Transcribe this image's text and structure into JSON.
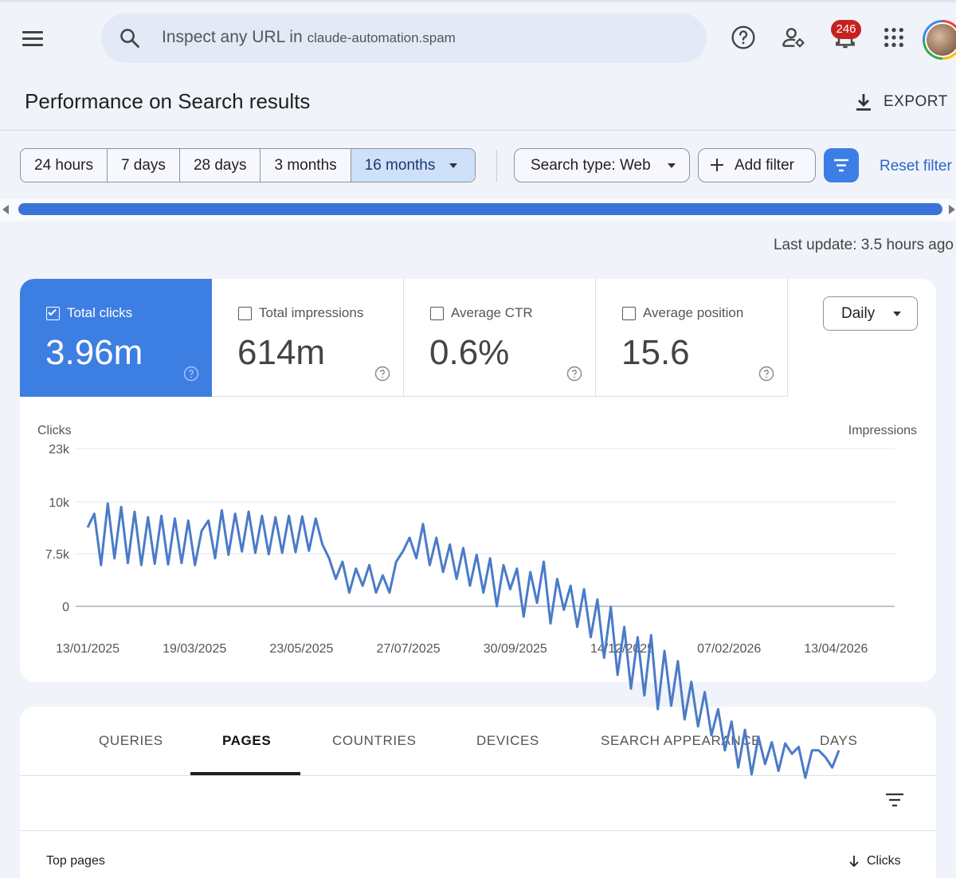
{
  "topbar": {
    "search_placeholder": "Inspect any URL in",
    "search_domain": "claude-automation.spam",
    "notification_count": "246",
    "icons": [
      "menu-icon",
      "search-icon",
      "help-icon",
      "people-settings-icon",
      "bell-icon",
      "apps-grid-icon",
      "avatar"
    ]
  },
  "header": {
    "title": "Performance on Search results",
    "export_label": "EXPORT"
  },
  "filters": {
    "ranges": [
      "24 hours",
      "7 days",
      "28 days",
      "3 months",
      "16 months"
    ],
    "active_range": "16 months",
    "search_type": "Search type: Web",
    "add_filter": "Add filter",
    "reset": "Reset filter"
  },
  "progress": {
    "fraction": 1.0,
    "color": "#3b74d9"
  },
  "last_update": "Last update: 3.5 hours ago",
  "metrics": [
    {
      "label": "Total clicks",
      "value": "3.96m",
      "checked": true
    },
    {
      "label": "Total impressions",
      "value": "614m",
      "checked": false
    },
    {
      "label": "Average CTR",
      "value": "0.6%",
      "checked": false
    },
    {
      "label": "Average position",
      "value": "15.6",
      "checked": false
    }
  ],
  "granularity": "Daily",
  "colors": {
    "accent": "#3d7ee3",
    "line": "#4a7bc8"
  },
  "chart_data": {
    "type": "line",
    "ylabel": "Clicks",
    "ylabel_right": "Impressions",
    "y_ticks": [
      "23k",
      "10k",
      "7.5k",
      "0"
    ],
    "x_ticks": [
      "13/01/2025",
      "19/03/2025",
      "23/05/2025",
      "27/07/2025",
      "30/09/2025",
      "14/12/2025",
      "07/02/2026",
      "13/04/2026"
    ],
    "grid": true,
    "series": [
      {
        "values": [
          11500,
          13500,
          6000,
          15000,
          7000,
          14500,
          6300,
          13800,
          6000,
          13000,
          6200,
          13200,
          6100,
          12800,
          6300,
          12500,
          6000,
          11000,
          12500,
          7000,
          14000,
          7500,
          13500,
          8000,
          13800,
          7800,
          13200,
          7600,
          13000,
          7800,
          13200,
          7900,
          13100,
          8100,
          12800,
          9000,
          7000,
          4000,
          6500,
          2000,
          5500,
          3000,
          6000,
          2000,
          4500,
          2000,
          6500,
          8000,
          10000,
          7000,
          12000,
          6000,
          10000,
          5000,
          9000,
          4000,
          8500,
          3000,
          7500,
          2000,
          7000,
          0,
          6000,
          2500,
          5500,
          -1500,
          5000,
          500,
          6500,
          -2500,
          4000,
          -500,
          3000,
          -3000,
          2500,
          -4500,
          1000,
          -7500,
          -100,
          -10000,
          -3000,
          -12000,
          -4500,
          -13000,
          -4200,
          -15000,
          -6500,
          -14500,
          -8000,
          -16500,
          -11000,
          -17500,
          -12500,
          -18800,
          -15000,
          -21000,
          -16800,
          -23500,
          -18000,
          -24500,
          -19000,
          -23000,
          -19800,
          -24000,
          -20000,
          -21500,
          -20500,
          -25000,
          -21000,
          -21000,
          -22000,
          -23500,
          -21000
        ]
      }
    ]
  },
  "tabs": [
    "QUERIES",
    "PAGES",
    "COUNTRIES",
    "DEVICES",
    "SEARCH APPEARANCE",
    "DAYS"
  ],
  "active_tab": "PAGES",
  "table": {
    "title": "Top pages",
    "sort_column": "Clicks"
  }
}
